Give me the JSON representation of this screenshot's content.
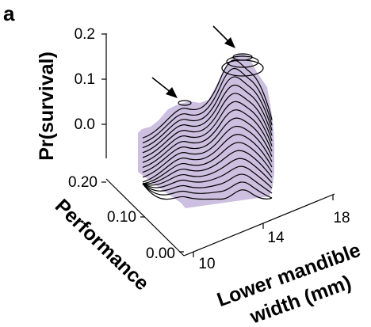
{
  "figure": {
    "panel_letter": "a"
  },
  "chart_data": {
    "type": "surface",
    "zlabel": "Pr(survival)",
    "ylabel": "Performance",
    "xlabel_line1": "Lower mandible",
    "xlabel_line2": "width (mm)",
    "z_ticks": [
      "0.2",
      "0.1",
      "0.0"
    ],
    "y_ticks": [
      "0.20",
      "0.10",
      "0.00"
    ],
    "x_ticks": [
      "10",
      "14",
      "18"
    ],
    "zlim": [
      0.0,
      0.2
    ],
    "ylim": [
      0.0,
      0.2
    ],
    "xlim": [
      10,
      18
    ],
    "contour_interval": 0.01,
    "peaks": [
      {
        "x": 10.5,
        "y": 0.17,
        "z": 0.07
      },
      {
        "x": 17.5,
        "y": 0.18,
        "z": 0.17
      }
    ],
    "annotations": [
      "arrow to left peak",
      "arrow to right peak"
    ],
    "surface_color": "#cdbfe0",
    "grid": false
  }
}
